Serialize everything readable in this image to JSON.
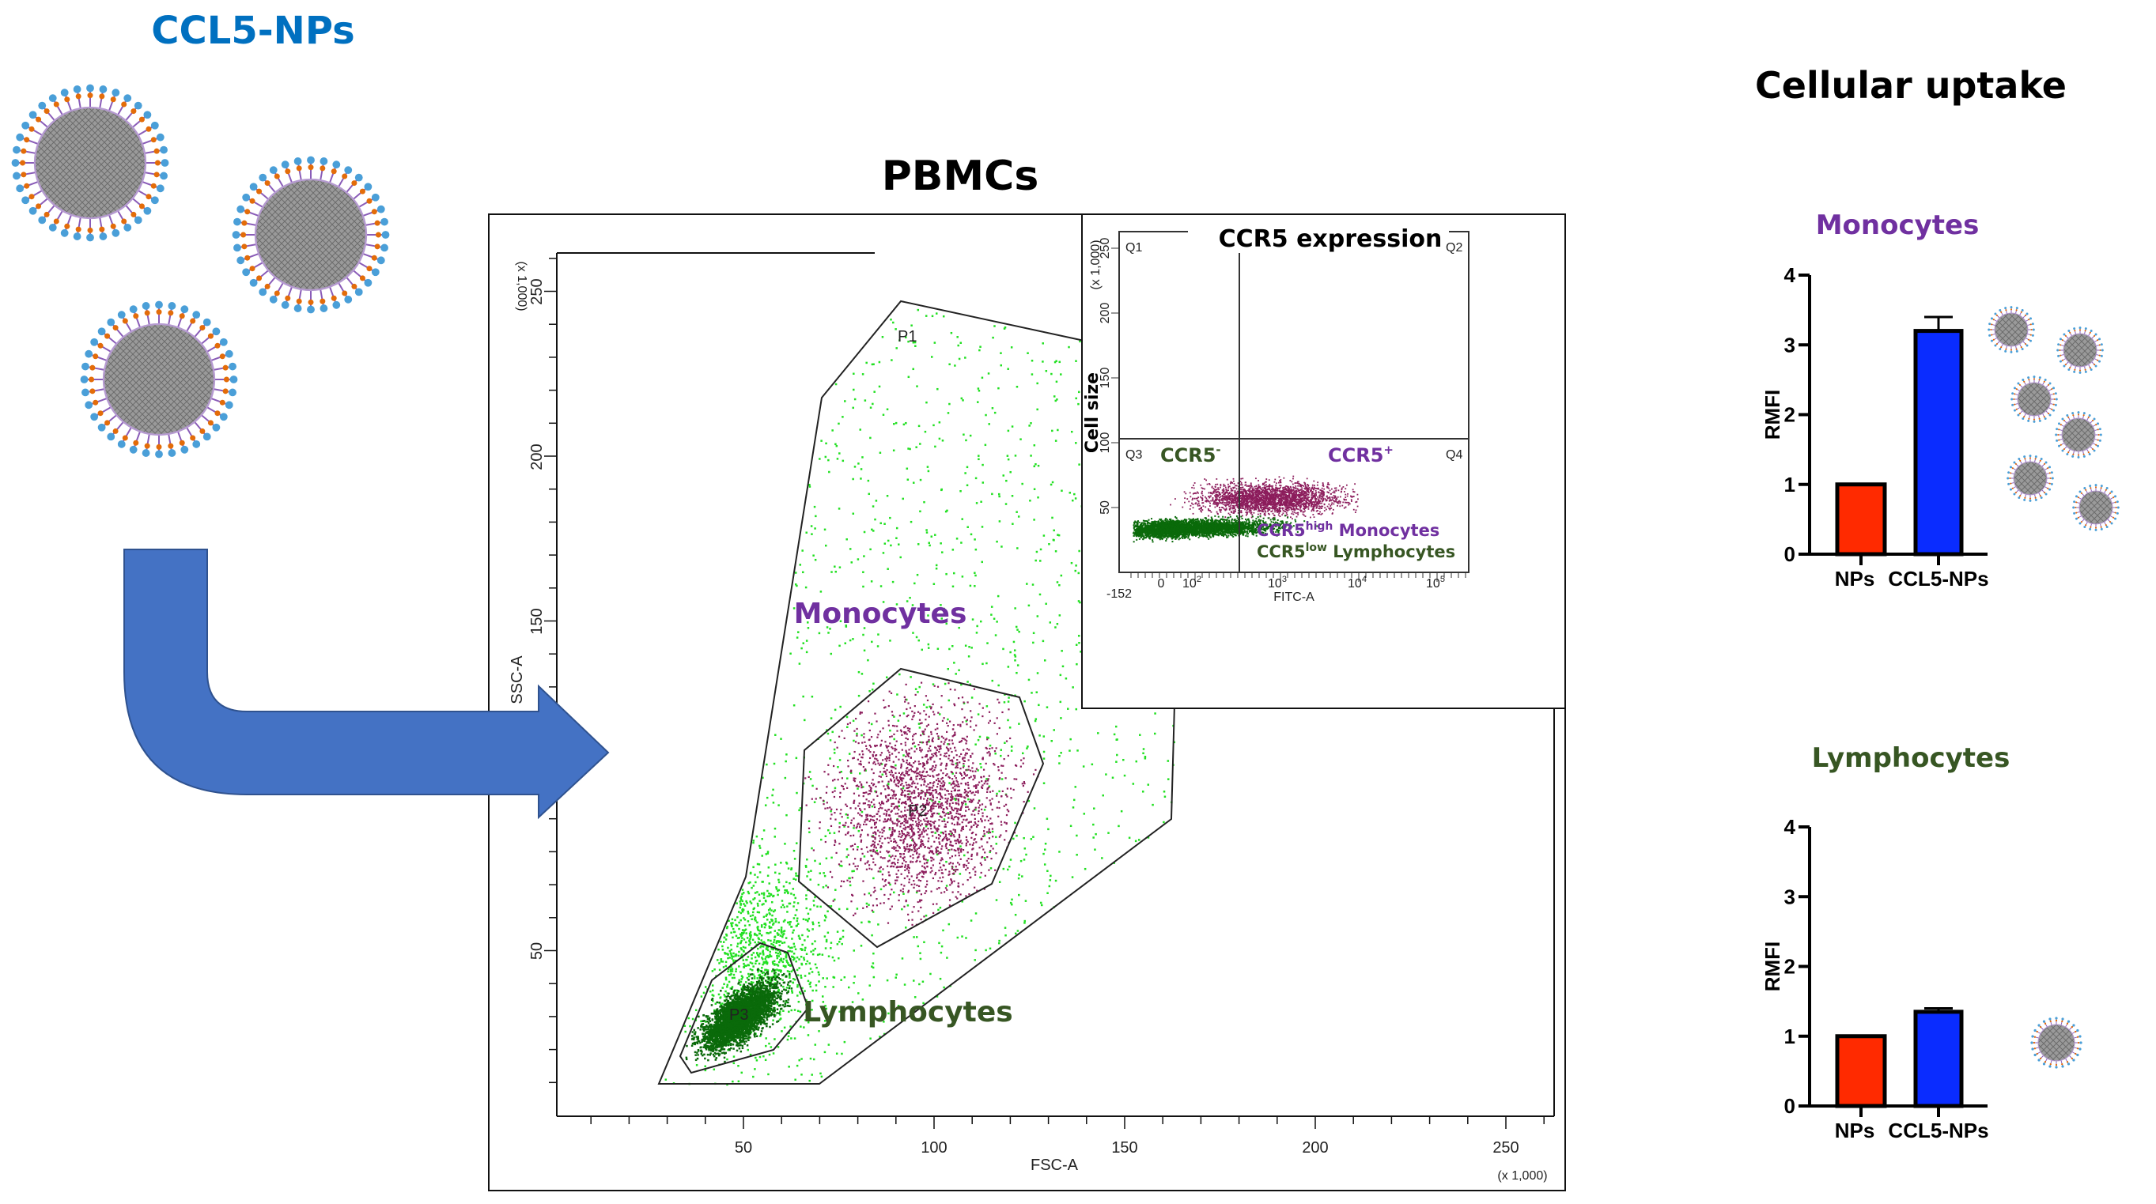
{
  "header": {
    "nanoparticle_title": "CCL5-NPs",
    "pbmc_title": "PBMCs",
    "uptake_title": "Cellular uptake"
  },
  "colors": {
    "blue_title": "#0070c0",
    "arrow": "#4472c4",
    "monocyte_purple": "#7030a0",
    "lymphocyte_green": "#375623",
    "scatter_green": "#22e022",
    "scatter_maroon": "#8c1d5c",
    "scatter_dark_green": "#0a6a0a",
    "bar_red": "#ff2a00",
    "bar_blue": "#0a2cff"
  },
  "main_plot": {
    "x_label": "FSC-A",
    "y_label": "SSC-A",
    "x_multiplier": "(x 1,000)",
    "y_multiplier": "(x 1,000)",
    "x_ticks": [
      "50",
      "100",
      "150",
      "200",
      "250"
    ],
    "y_ticks": [
      "50",
      "150",
      "200",
      "250"
    ],
    "gates": [
      "P1",
      "P2",
      "P3"
    ],
    "monocytes_label": "Monocytes",
    "lymphocytes_label": "Lymphocytes"
  },
  "inset": {
    "title": "CCR5 expression",
    "y_label": "Cell size",
    "x_label": "FITC-A",
    "y_multiplier": "(x 1,000)",
    "y_ticks": [
      "50",
      "100",
      "150",
      "200",
      "250"
    ],
    "x_ticks": [
      "-152",
      "0",
      "10",
      "10",
      "10",
      "10"
    ],
    "x_exponents": [
      "",
      "",
      "2",
      "3",
      "4",
      "5"
    ],
    "quadrants": [
      "Q1",
      "Q2",
      "Q3",
      "Q4"
    ],
    "ccr5_neg": "CCR5",
    "ccr5_neg_sup": "-",
    "ccr5_pos": "CCR5",
    "ccr5_pos_sup": "+",
    "mono_label": "CCR5",
    "mono_sup": "high",
    "mono_suffix": " Monocytes",
    "lymph_label": "CCR5",
    "lymph_sup": "low",
    "lymph_suffix": " Lymphocytes"
  },
  "chart_data": [
    {
      "type": "bar",
      "title": "Monocytes",
      "categories": [
        "NPs",
        "CCL5-NPs"
      ],
      "values": [
        1.0,
        3.2
      ],
      "errors": [
        0,
        0.2
      ],
      "ylabel": "RMFI",
      "xlabel": "",
      "ylim": [
        0,
        4
      ],
      "yticks": [
        "0",
        "1",
        "2",
        "3",
        "4"
      ]
    },
    {
      "type": "bar",
      "title": "Lymphocytes",
      "categories": [
        "NPs",
        "CCL5-NPs"
      ],
      "values": [
        1.0,
        1.35
      ],
      "errors": [
        0,
        0.05
      ],
      "ylabel": "RMFI",
      "xlabel": "",
      "ylim": [
        0,
        4
      ],
      "yticks": [
        "0",
        "1",
        "2",
        "3",
        "4"
      ]
    }
  ]
}
